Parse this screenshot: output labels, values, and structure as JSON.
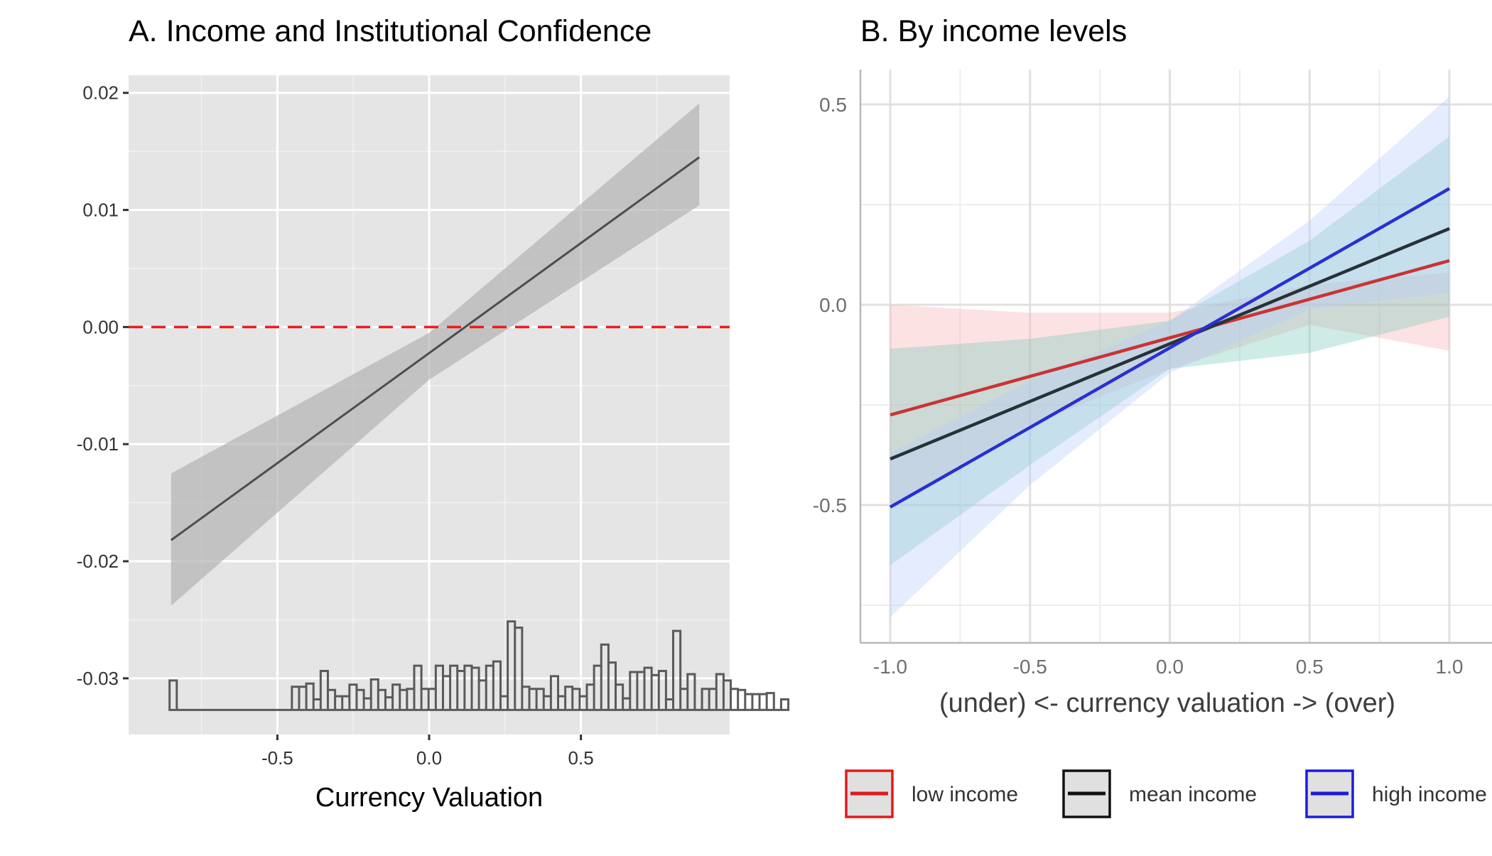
{
  "chart_data": [
    {
      "type": "line",
      "title": "A. Income and Institutional Confidence",
      "xlabel": "Currency Valuation",
      "ylabel": "",
      "xlim": [
        -0.99,
        0.99
      ],
      "ylim": [
        -0.0348,
        0.0215
      ],
      "x_ticks": [
        -0.5,
        0.0,
        0.5
      ],
      "x_tick_labels": [
        "-0.5",
        "0.0",
        "0.5"
      ],
      "y_ticks": [
        0.02,
        0.01,
        0.0,
        -0.01,
        -0.02,
        -0.03
      ],
      "y_tick_labels": [
        "0.02",
        "0.01",
        "0.00",
        "-0.01",
        "-0.02",
        "-0.03"
      ],
      "grid": true,
      "reference_line": {
        "y": 0.0,
        "style": "dashed",
        "color": "#ee1c1c"
      },
      "series": [
        {
          "color": "#4d4d4d",
          "x": [
            -0.85,
            0.89
          ],
          "y": [
            -0.0182,
            0.0145
          ],
          "ci_x": [
            -0.85,
            0.0,
            0.89
          ],
          "ci_lower": [
            -0.0238,
            -0.0045,
            0.0104
          ],
          "ci_upper": [
            -0.0125,
            -0.0005,
            0.0191
          ]
        }
      ],
      "histogram": {
        "baseline": -0.0327,
        "color": "#5a5a5a",
        "bin_width": 0.0237,
        "x_start": -0.855,
        "heights": [
          2.8,
          0,
          0,
          0,
          0,
          0,
          0,
          0,
          0,
          0,
          0,
          0,
          0,
          0,
          0,
          0,
          0,
          2.2,
          2.2,
          2.5,
          1.0,
          3.7,
          1.9,
          1.3,
          1.3,
          2.4,
          1.9,
          1.1,
          2.9,
          1.9,
          1.2,
          2.4,
          1.9,
          2.0,
          4.2,
          2.0,
          2.0,
          4.2,
          3.2,
          4.2,
          3.7,
          4.2,
          4.0,
          2.8,
          4.2,
          4.6,
          1.3,
          8.4,
          7.8,
          2.2,
          2.0,
          2.0,
          1.3,
          3.2,
          1.3,
          2.2,
          2.0,
          1.3,
          2.4,
          4.2,
          6.2,
          4.5,
          2.4,
          1.1,
          3.6,
          3.6,
          4.0,
          3.3,
          3.7,
          1.0,
          7.5,
          2.0,
          3.4,
          0,
          2.0,
          2.0,
          3.4,
          2.8,
          2.0,
          1.9,
          1.5,
          1.5,
          1.5,
          1.6,
          0,
          1.0
        ]
      }
    },
    {
      "type": "line",
      "title": "B. By income levels",
      "xlabel": "(under) <- currency valuation -> (over)",
      "ylabel": "",
      "xlim": [
        -1.1,
        1.1
      ],
      "ylim": [
        -0.85,
        0.56
      ],
      "x_ticks": [
        -1.0,
        -0.5,
        0.0,
        0.5,
        1.0
      ],
      "x_tick_labels": [
        "-1.0",
        "-0.5",
        "0.0",
        "0.5",
        "1.0"
      ],
      "y_ticks": [
        0.5,
        0.0,
        -0.5
      ],
      "y_tick_labels": [
        "0.5",
        "0.0",
        "-0.5"
      ],
      "grid": true,
      "legend_position": "bottom",
      "series": [
        {
          "name": "low income",
          "color": "#c93434",
          "legend_color": "#e31a1c",
          "fill": "#f6b4b4",
          "x": [
            -1.0,
            1.0
          ],
          "y": [
            -0.275,
            0.11
          ],
          "ci_x": [
            -1.0,
            -0.5,
            0.0,
            0.5,
            1.0
          ],
          "ci_upper": [
            0.0,
            -0.02,
            -0.02,
            0.05,
            0.08
          ],
          "ci_lower": [
            -0.5,
            -0.3,
            -0.16,
            -0.05,
            -0.115
          ]
        },
        {
          "name": "mean income",
          "color": "#263238",
          "legend_color": "#111111",
          "fill": "#7fcbbd",
          "x": [
            -1.0,
            1.0
          ],
          "y": [
            -0.385,
            0.19
          ],
          "ci_x": [
            -1.0,
            -0.5,
            0.0,
            0.5,
            1.0
          ],
          "ci_upper": [
            -0.11,
            -0.085,
            -0.04,
            0.16,
            0.42
          ],
          "ci_lower": [
            -0.65,
            -0.4,
            -0.16,
            -0.12,
            -0.03
          ]
        },
        {
          "name": "high income",
          "color": "#2a2fd0",
          "legend_color": "#1b1be0",
          "fill": "#b9cdfa",
          "x": [
            -1.0,
            1.0
          ],
          "y": [
            -0.505,
            0.29
          ],
          "ci_x": [
            -1.0,
            -0.5,
            0.0,
            0.5,
            1.0
          ],
          "ci_upper": [
            -0.37,
            -0.19,
            -0.04,
            0.21,
            0.52
          ],
          "ci_lower": [
            -0.78,
            -0.45,
            -0.17,
            -0.01,
            0.03
          ]
        }
      ]
    }
  ]
}
